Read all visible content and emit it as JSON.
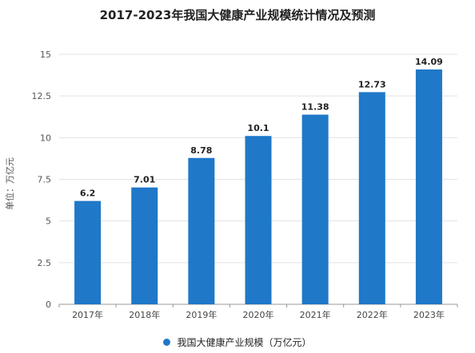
{
  "chart_data": {
    "type": "bar",
    "title": "2017-2023年我国大健康产业规模统计情况及预测",
    "ylabel": "单位：万亿元",
    "xlabel": "",
    "categories": [
      "2017年",
      "2018年",
      "2019年",
      "2020年",
      "2021年",
      "2022年",
      "2023年"
    ],
    "series": [
      {
        "name": "我国大健康产业规模（万亿元）",
        "values": [
          6.2,
          7.01,
          8.78,
          10.1,
          11.38,
          12.73,
          14.09
        ]
      }
    ],
    "value_labels": [
      "6.2",
      "7.01",
      "8.78",
      "10.1",
      "11.38",
      "12.73",
      "14.09"
    ],
    "ylim": [
      0,
      15
    ],
    "yticks": [
      "0",
      "2.5",
      "5",
      "7.5",
      "10",
      "12.5",
      "15"
    ],
    "grid": true,
    "legend_position": "bottom",
    "bar_color": "#1f78c8"
  }
}
